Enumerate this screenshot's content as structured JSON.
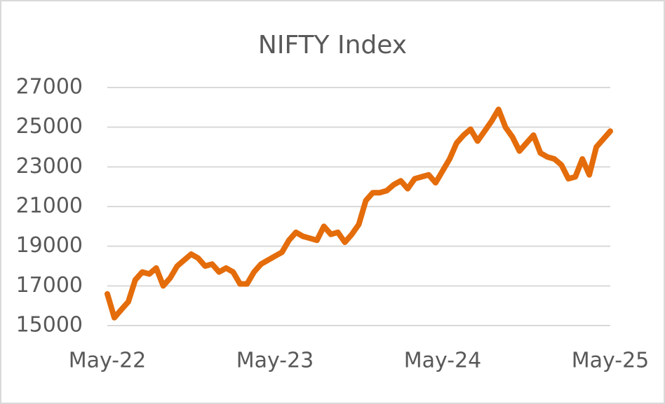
{
  "chart_data": {
    "type": "line",
    "title": "NIFTY Index",
    "categories": [
      "May-22",
      null,
      null,
      null,
      null,
      null,
      null,
      null,
      null,
      null,
      null,
      null,
      null,
      null,
      null,
      null,
      null,
      null,
      null,
      null,
      null,
      null,
      null,
      null,
      "May-23",
      null,
      null,
      null,
      null,
      null,
      null,
      null,
      null,
      null,
      null,
      null,
      null,
      null,
      null,
      null,
      null,
      null,
      null,
      null,
      null,
      null,
      null,
      null,
      "May-24",
      null,
      null,
      null,
      null,
      null,
      null,
      null,
      null,
      null,
      null,
      null,
      null,
      null,
      null,
      null,
      null,
      null,
      null,
      null,
      null,
      null,
      null,
      null,
      "May-25"
    ],
    "values": [
      16600,
      15400,
      15800,
      16200,
      17300,
      17700,
      17600,
      17900,
      17000,
      17400,
      18000,
      18300,
      18600,
      18400,
      18000,
      18100,
      17700,
      17900,
      17700,
      17100,
      17100,
      17700,
      18100,
      18300,
      18500,
      18700,
      19300,
      19700,
      19500,
      19400,
      19300,
      20000,
      19600,
      19700,
      19200,
      19600,
      20100,
      21300,
      21700,
      21700,
      21800,
      22100,
      22300,
      21900,
      22400,
      22500,
      22600,
      22200,
      22800,
      23400,
      24200,
      24600,
      24900,
      24300,
      24800,
      25300,
      25900,
      25000,
      24500,
      23800,
      24200,
      24600,
      23700,
      23500,
      23400,
      23100,
      22400,
      22500,
      23400,
      22600,
      24000,
      24400,
      24800
    ],
    "color": "#e46c0a",
    "ylim": [
      15000,
      27000
    ],
    "yticks": [
      15000,
      17000,
      19000,
      21000,
      23000,
      25000,
      27000
    ],
    "grid": true
  }
}
